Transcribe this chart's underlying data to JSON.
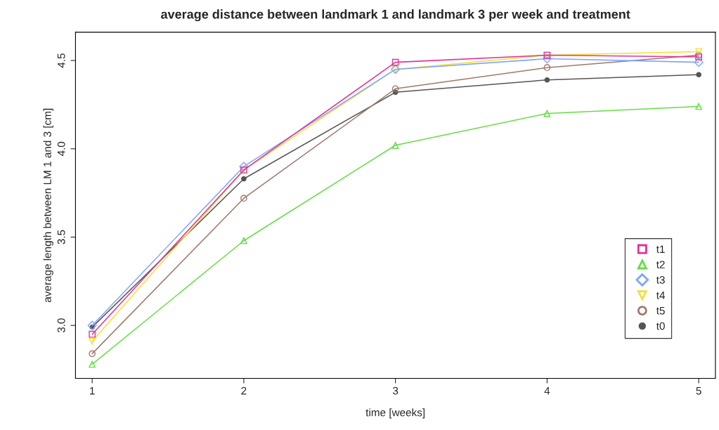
{
  "chart_data": {
    "type": "line",
    "title": "average distance between landmark 1 and landmark 3 per week and treatment",
    "xlabel": "time [weeks]",
    "ylabel": "average length between LM 1 and 3 [cm]",
    "x": [
      1,
      2,
      3,
      4,
      5
    ],
    "series": [
      {
        "name": "t1",
        "color": "#e0339a",
        "marker": "square",
        "values": [
          2.95,
          3.88,
          4.49,
          4.53,
          4.52
        ]
      },
      {
        "name": "t2",
        "color": "#66dd44",
        "marker": "triangle",
        "values": [
          2.78,
          3.48,
          4.02,
          4.2,
          4.24
        ]
      },
      {
        "name": "t3",
        "color": "#7fa4ff",
        "marker": "diamond",
        "values": [
          3.0,
          3.9,
          4.45,
          4.51,
          4.49
        ]
      },
      {
        "name": "t4",
        "color": "#f2e033",
        "marker": "triangle_down",
        "values": [
          2.91,
          3.88,
          4.45,
          4.53,
          4.55
        ]
      },
      {
        "name": "t5",
        "color": "#a0786a",
        "marker": "circle",
        "values": [
          2.84,
          3.72,
          4.34,
          4.46,
          4.53
        ]
      },
      {
        "name": "t0",
        "color": "#555555",
        "marker": "point",
        "values": [
          2.99,
          3.83,
          4.32,
          4.39,
          4.42
        ]
      }
    ],
    "xlim": [
      0.89,
      5.11
    ],
    "ylim": [
      2.7,
      4.66
    ],
    "xticks": [
      1,
      2,
      3,
      4,
      5
    ],
    "yticks": [
      {
        "value": 3,
        "label": "3.0"
      },
      {
        "value": 3.5,
        "label": "3.5"
      },
      {
        "value": 4,
        "label": "4.0"
      },
      {
        "value": 4.5,
        "label": "4.5"
      }
    ],
    "grid": false,
    "legend": "bottom right",
    "line_style": "solid"
  }
}
